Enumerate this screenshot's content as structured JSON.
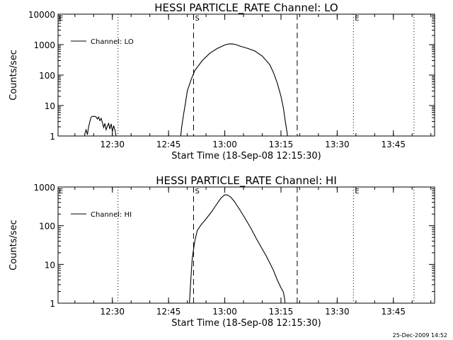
{
  "footer": {
    "timestamp": "25-Dec-2009 14:52"
  },
  "chart_data": [
    {
      "type": "line",
      "title": "HESSI PARTICLE_RATE Channel: LO",
      "xlabel": "Start Time (18-Sep-08 12:15:30)",
      "ylabel": "Counts/sec",
      "xlim": [
        "12:15:30",
        "13:56:00"
      ],
      "ylim": [
        1,
        10000
      ],
      "yscale": "log",
      "xticks": [
        "12:30",
        "12:45",
        "13:00",
        "13:15",
        "13:30",
        "13:45"
      ],
      "yticks": [
        "1",
        "10",
        "100",
        "1000",
        "10000"
      ],
      "legend_position": "top-left",
      "series": [
        {
          "name": "Channel: LO",
          "segments": [
            [
              [
                "12:22:20",
                0.5
              ],
              [
                "12:22:40",
                1.2
              ],
              [
                "12:23:00",
                1.6
              ],
              [
                "12:23:20",
                1.1
              ],
              [
                "12:23:40",
                2.0
              ],
              [
                "12:24:00",
                3.0
              ],
              [
                "12:24:20",
                4.2
              ],
              [
                "12:24:40",
                4.4
              ],
              [
                "12:25:20",
                4.4
              ],
              [
                "12:25:40",
                4.2
              ],
              [
                "12:26:00",
                3.6
              ],
              [
                "12:26:20",
                4.2
              ],
              [
                "12:26:40",
                3.2
              ],
              [
                "12:27:00",
                3.8
              ],
              [
                "12:27:20",
                2.8
              ],
              [
                "12:27:40",
                1.9
              ],
              [
                "12:28:00",
                2.6
              ],
              [
                "12:28:20",
                1.6
              ],
              [
                "12:28:40",
                2.1
              ],
              [
                "12:29:00",
                2.6
              ],
              [
                "12:29:20",
                1.7
              ],
              [
                "12:29:40",
                2.5
              ],
              [
                "12:30:00",
                1.4
              ],
              [
                "12:30:20",
                2.2
              ],
              [
                "12:30:40",
                1.6
              ],
              [
                "12:31:00",
                1.0
              ],
              [
                "12:31:20",
                0.5
              ]
            ],
            [
              [
                "12:48:00",
                0.5
              ],
              [
                "12:48:30",
                2
              ],
              [
                "12:49:00",
                5
              ],
              [
                "12:49:30",
                12
              ],
              [
                "12:50:00",
                30
              ],
              [
                "12:51:00",
                70
              ],
              [
                "12:52:00",
                140
              ],
              [
                "12:54:00",
                300
              ],
              [
                "12:56:00",
                520
              ],
              [
                "12:58:00",
                750
              ],
              [
                "12:59:00",
                850
              ],
              [
                "13:00:00",
                980
              ],
              [
                "13:01:00",
                1050
              ],
              [
                "13:02:00",
                1060
              ],
              [
                "13:03:00",
                1000
              ],
              [
                "13:04:00",
                900
              ],
              [
                "13:06:00",
                760
              ],
              [
                "13:08:00",
                620
              ],
              [
                "13:10:00",
                420
              ],
              [
                "13:12:00",
                220
              ],
              [
                "13:13:00",
                120
              ],
              [
                "13:14:00",
                55
              ],
              [
                "13:15:00",
                20
              ],
              [
                "13:15:40",
                8
              ],
              [
                "13:16:10",
                3
              ],
              [
                "13:16:40",
                1.2
              ],
              [
                "13:17:00",
                0.5
              ]
            ]
          ]
        }
      ],
      "vlines": [
        {
          "time": "12:31:30",
          "style": "dotted",
          "label": ""
        },
        {
          "time": "12:51:40",
          "style": "dashed",
          "label": "S"
        },
        {
          "time": "13:19:20",
          "style": "dashed",
          "label": ""
        },
        {
          "time": "13:34:20",
          "style": "dotted",
          "label": "E"
        },
        {
          "time": "13:50:30",
          "style": "dotted",
          "label": ""
        }
      ],
      "edge_label": "E"
    },
    {
      "type": "line",
      "title": "HESSI PARTICLE_RATE Channel: HI",
      "xlabel": "Start Time (18-Sep-08 12:15:30)",
      "ylabel": "Counts/sec",
      "xlim": [
        "12:15:30",
        "13:56:00"
      ],
      "ylim": [
        1,
        1000
      ],
      "yscale": "log",
      "xticks": [
        "12:30",
        "12:45",
        "13:00",
        "13:15",
        "13:30",
        "13:45"
      ],
      "yticks": [
        "1",
        "10",
        "100",
        "1000"
      ],
      "legend_position": "top-left",
      "series": [
        {
          "name": "Channel: HI",
          "segments": [
            [
              [
                "12:50:20",
                0.5
              ],
              [
                "12:50:40",
                1.5
              ],
              [
                "12:51:00",
                5
              ],
              [
                "12:51:20",
                15
              ],
              [
                "12:52:00",
                40
              ],
              [
                "12:52:40",
                75
              ],
              [
                "12:53:30",
                100
              ],
              [
                "12:55:00",
                150
              ],
              [
                "12:56:30",
                230
              ],
              [
                "12:58:00",
                380
              ],
              [
                "12:59:00",
                520
              ],
              [
                "13:00:00",
                630
              ],
              [
                "13:00:40",
                620
              ],
              [
                "13:01:30",
                560
              ],
              [
                "13:02:30",
                430
              ],
              [
                "13:04:00",
                260
              ],
              [
                "13:05:30",
                150
              ],
              [
                "13:07:00",
                85
              ],
              [
                "13:08:30",
                45
              ],
              [
                "13:10:00",
                25
              ],
              [
                "13:11:00",
                17
              ],
              [
                "13:12:00",
                11
              ],
              [
                "13:13:00",
                7
              ],
              [
                "13:14:00",
                4
              ],
              [
                "13:15:00",
                2.5
              ],
              [
                "13:15:40",
                1.9
              ],
              [
                "13:16:00",
                1.2
              ],
              [
                "13:16:20",
                0.5
              ]
            ]
          ]
        }
      ],
      "vlines": [
        {
          "time": "12:31:30",
          "style": "dotted",
          "label": ""
        },
        {
          "time": "12:51:40",
          "style": "dashed",
          "label": "S"
        },
        {
          "time": "13:19:20",
          "style": "dashed",
          "label": ""
        },
        {
          "time": "13:34:20",
          "style": "dotted",
          "label": "E"
        },
        {
          "time": "13:50:30",
          "style": "dotted",
          "label": ""
        }
      ],
      "edge_label": "E"
    }
  ]
}
